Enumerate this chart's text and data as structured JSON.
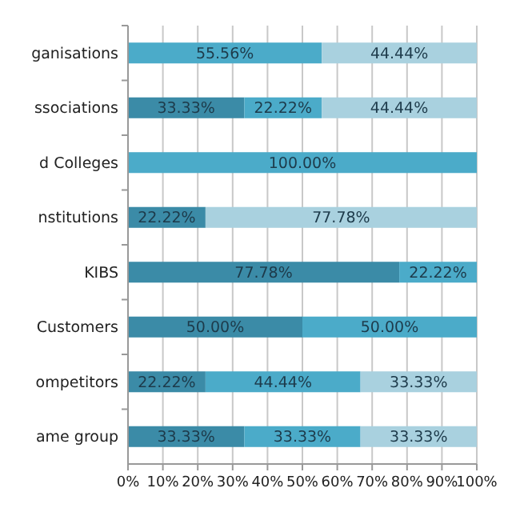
{
  "chart_data": {
    "type": "bar",
    "orientation": "horizontal",
    "stacked": true,
    "grid": "x",
    "categories": [
      "ganisations",
      "ssociations",
      "d Colleges",
      "nstitutions",
      "KIBS",
      "Customers",
      "ompetitors",
      "ame group"
    ],
    "series": [
      {
        "color": "#3b8ba7",
        "values": [
          null,
          33.33,
          null,
          22.22,
          77.78,
          50,
          22.22,
          33.33
        ],
        "value_labels": [
          null,
          "33.33%",
          null,
          "22.22%",
          "77.78%",
          "50.00%",
          "22.22%",
          "33.33%"
        ]
      },
      {
        "color": "#4babc9",
        "values": [
          55.56,
          22.22,
          100,
          null,
          22.22,
          50,
          44.44,
          33.33
        ],
        "value_labels": [
          "55.56%",
          "22.22%",
          "100.00%",
          null,
          "22.22%",
          "50.00%",
          "44.44%",
          "33.33%"
        ]
      },
      {
        "color": "#a9d1df",
        "values": [
          44.44,
          44.44,
          null,
          77.78,
          null,
          null,
          33.33,
          33.33
        ],
        "value_labels": [
          "44.44%",
          "44.44%",
          null,
          "77.78%",
          null,
          null,
          "33.33%",
          "33.33%"
        ]
      }
    ],
    "xlim": [
      0,
      100
    ],
    "xticks": [
      {
        "value": 0,
        "label": "0%"
      },
      {
        "value": 10,
        "label": "10%"
      },
      {
        "value": 20,
        "label": "20%"
      },
      {
        "value": 30,
        "label": "30%"
      },
      {
        "value": 40,
        "label": "40%"
      },
      {
        "value": 50,
        "label": "50%"
      },
      {
        "value": 60,
        "label": "60%"
      },
      {
        "value": 70,
        "label": "70%"
      },
      {
        "value": 80,
        "label": "80%"
      },
      {
        "value": 90,
        "label": "90%"
      },
      {
        "value": 100,
        "label": "100%"
      }
    ]
  }
}
